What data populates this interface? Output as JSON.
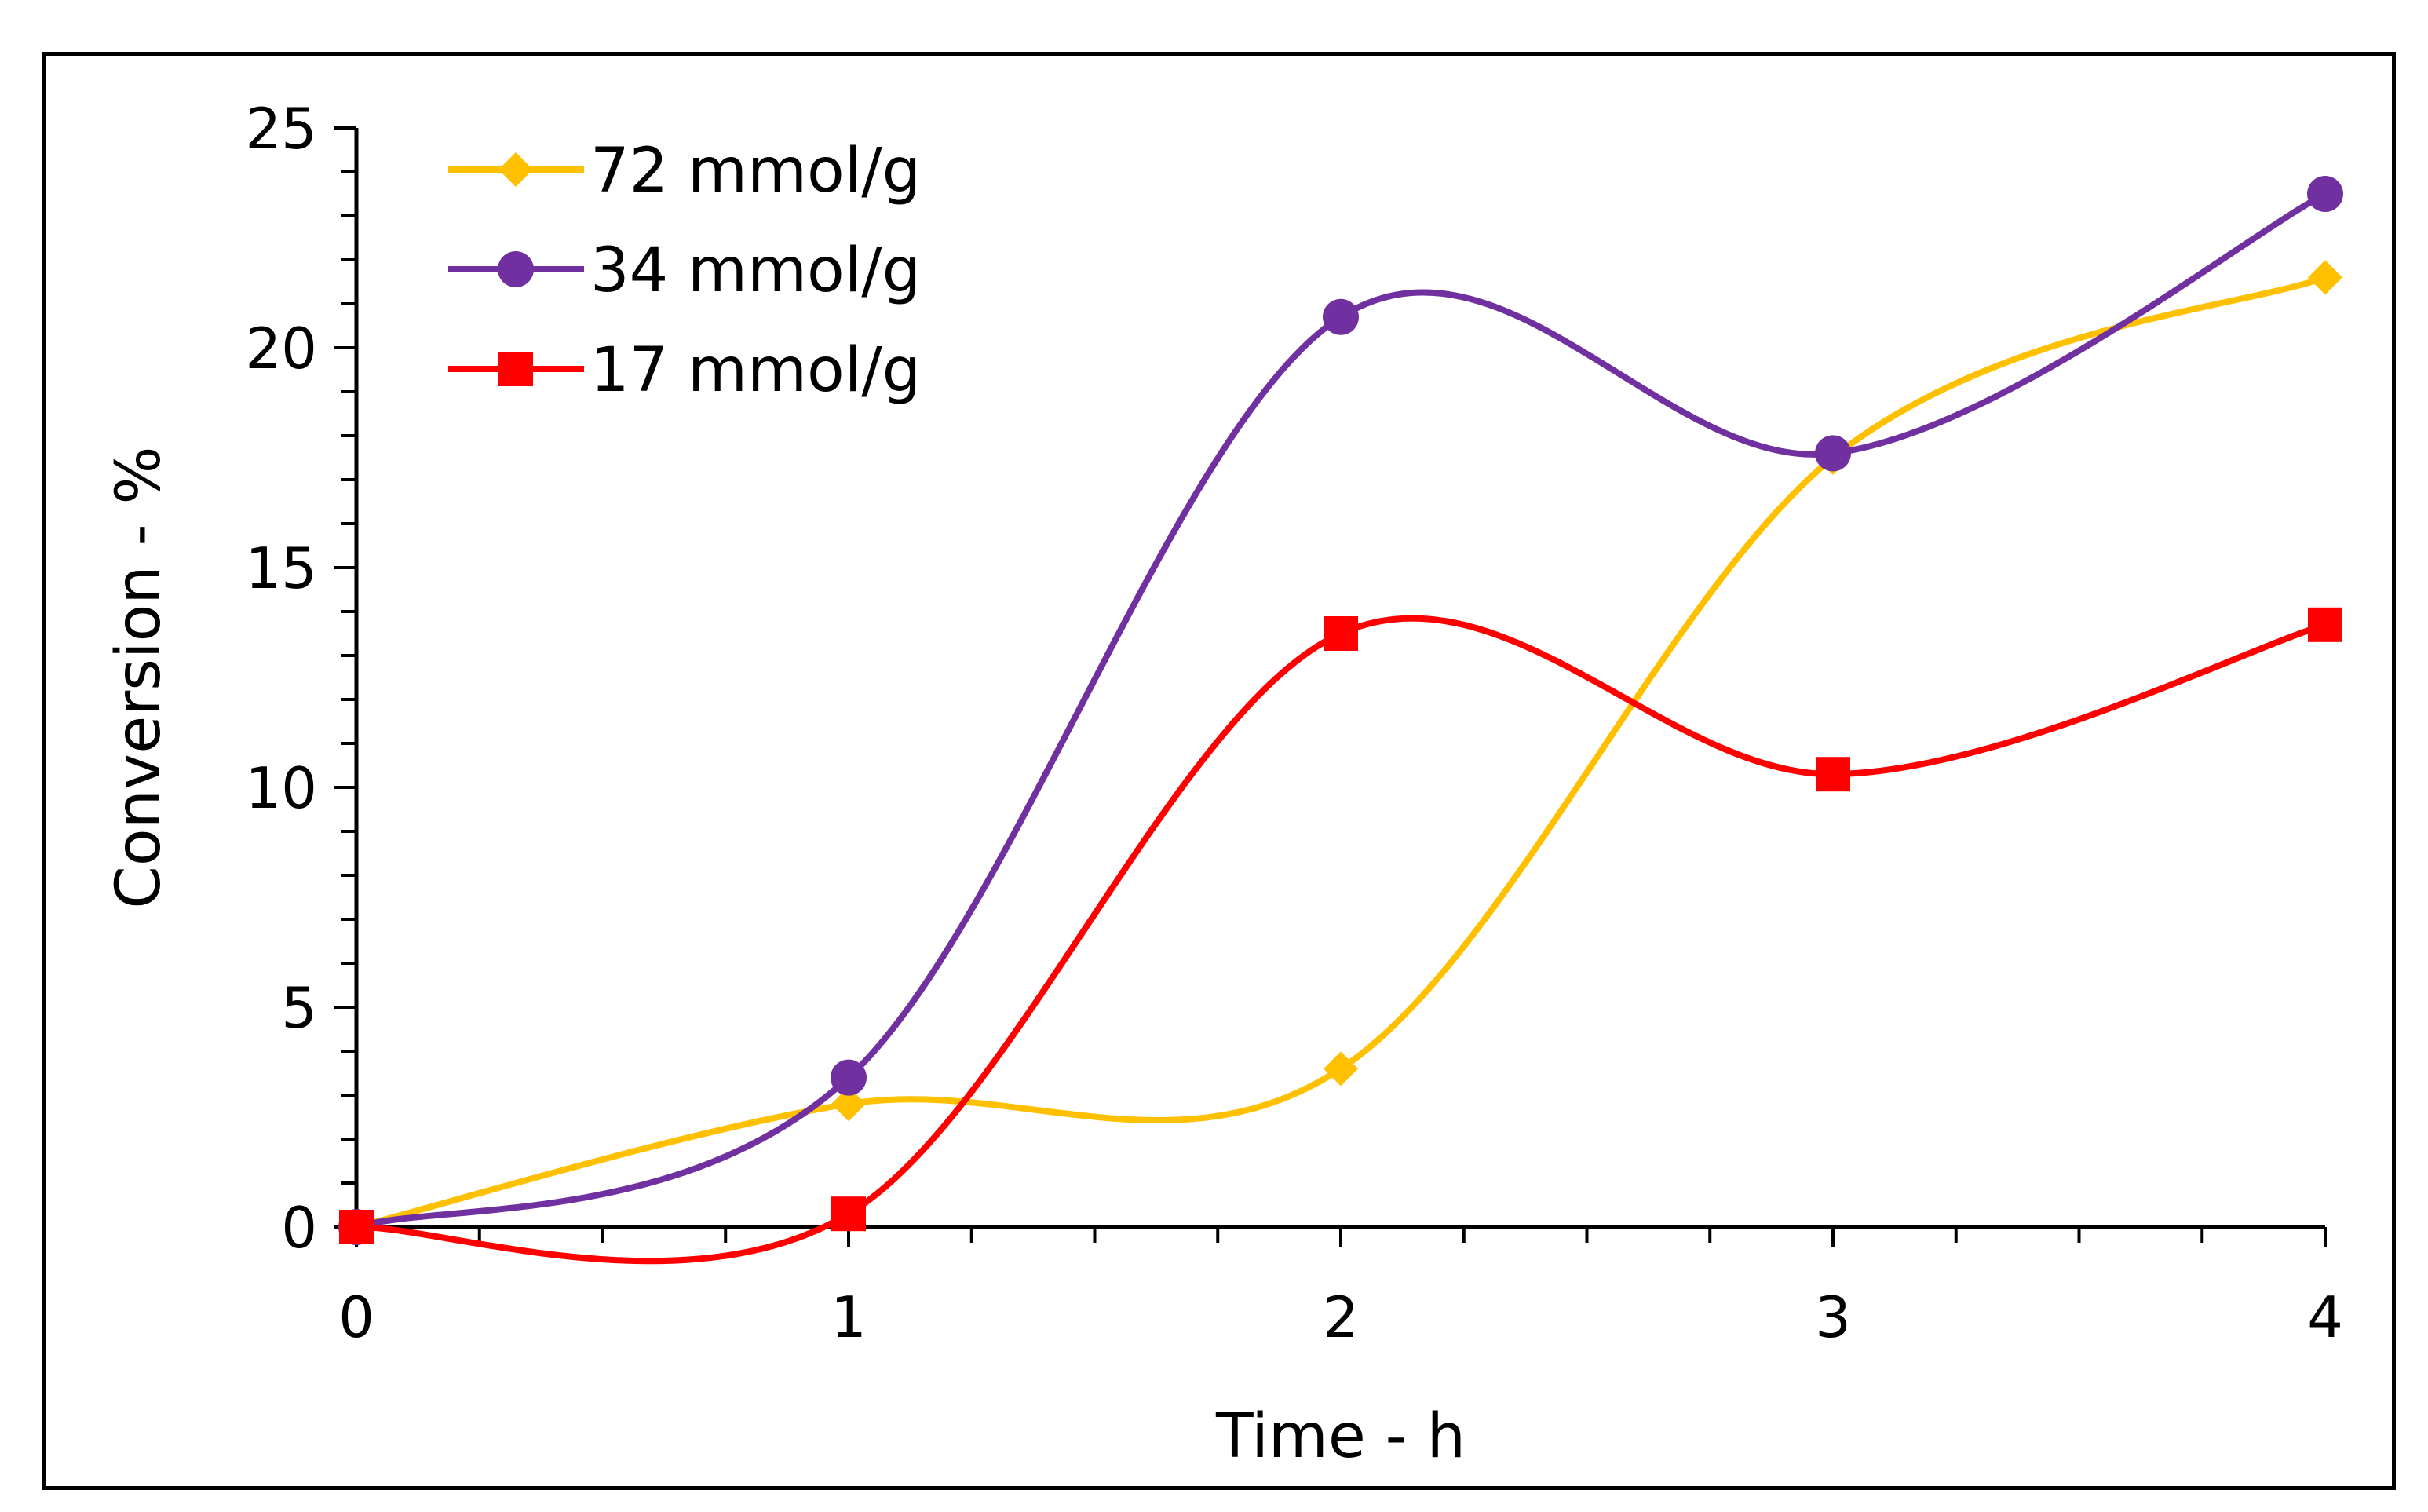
{
  "chart_data": {
    "type": "line",
    "title": "",
    "xlabel": "Time - h",
    "ylabel": "Conversion - %",
    "xlim": [
      0,
      4
    ],
    "ylim": [
      0,
      25
    ],
    "x_ticks": [
      0,
      1,
      2,
      3,
      4
    ],
    "y_ticks": [
      0,
      5,
      10,
      15,
      20,
      25
    ],
    "x_minor_step": 0.25,
    "y_minor_step": 1,
    "legend_position": "top-left",
    "smooth": true,
    "series": [
      {
        "name": "72 mmol/g",
        "color": "#FFC000",
        "marker": "diamond",
        "x": [
          0,
          1,
          2,
          3,
          4
        ],
        "values": [
          0,
          2.8,
          3.6,
          17.5,
          21.6
        ]
      },
      {
        "name": "34 mmol/g",
        "color": "#7030A0",
        "marker": "circle",
        "x": [
          0,
          1,
          2,
          3,
          4
        ],
        "values": [
          0,
          3.4,
          20.7,
          17.6,
          23.5
        ]
      },
      {
        "name": "17 mmol/g",
        "color": "#FF0000",
        "marker": "square",
        "x": [
          0,
          1,
          2,
          3,
          4
        ],
        "values": [
          0,
          0.3,
          13.5,
          10.3,
          13.7
        ]
      }
    ]
  }
}
